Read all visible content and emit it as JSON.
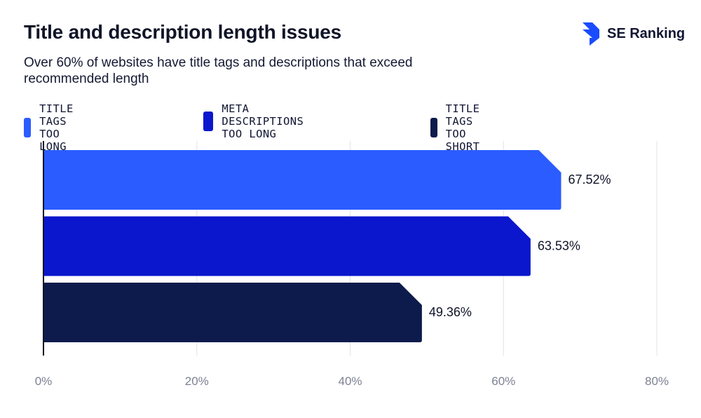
{
  "header": {
    "title": "Title and description length issues",
    "subtitle": "Over 60% of websites have title tags and descriptions that exceed recommended length"
  },
  "brand": {
    "name": "SE Ranking",
    "icon": "se-ranking-logo-icon",
    "color": "#1a4bff"
  },
  "legend": [
    {
      "label": "TITLE TAGS TOO LONG",
      "color": "#2b5cff"
    },
    {
      "label": "META DESCRIPTIONS TOO LONG",
      "color": "#0a17cc"
    },
    {
      "label": "TITLE TAGS TOO SHORT",
      "color": "#0c1b4b"
    }
  ],
  "chart_data": {
    "type": "bar",
    "orientation": "horizontal",
    "categories": [
      "TITLE TAGS TOO LONG",
      "META DESCRIPTIONS TOO LONG",
      "TITLE TAGS TOO SHORT"
    ],
    "values": [
      67.52,
      63.53,
      49.36
    ],
    "value_labels": [
      "67.52%",
      "63.53%",
      "49.36%"
    ],
    "colors": [
      "#2b5cff",
      "#0a17cc",
      "#0c1b4b"
    ],
    "xlim": [
      0,
      80
    ],
    "x_ticks": [
      0,
      20,
      40,
      60,
      80
    ],
    "x_tick_labels": [
      "0%",
      "20%",
      "40%",
      "60%",
      "80%"
    ],
    "grid": true,
    "legend_position": "top-left"
  }
}
